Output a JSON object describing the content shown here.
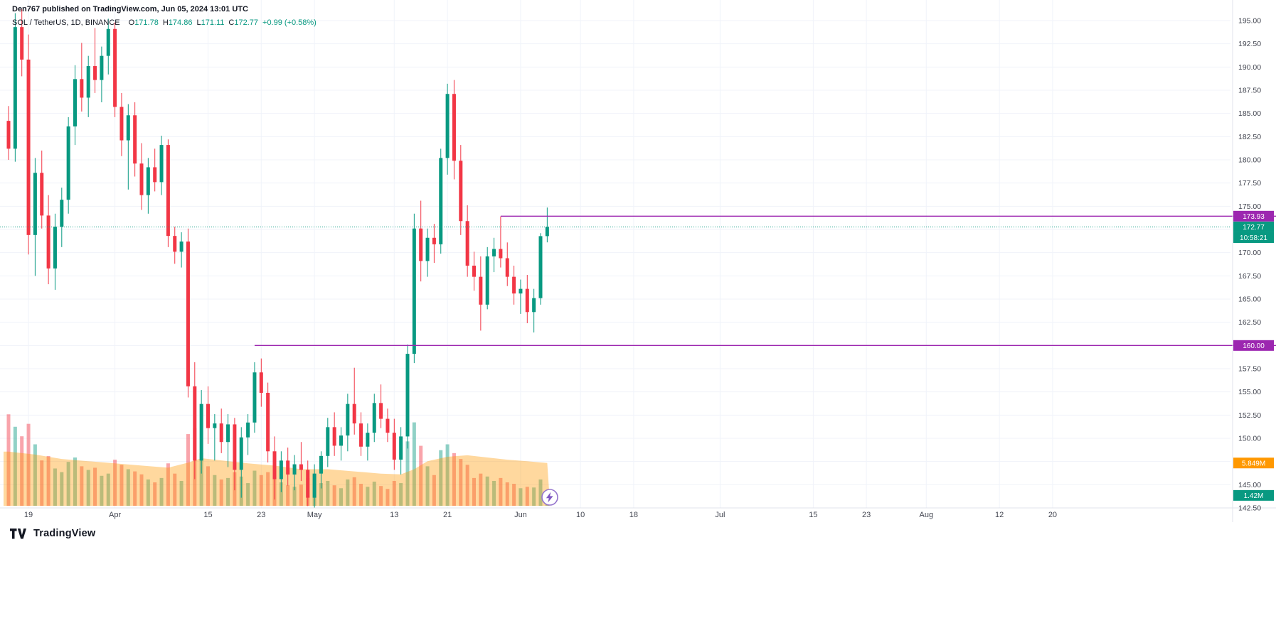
{
  "header": {
    "attribution": "Den767 published on TradingView.com, Jun 05, 2024 13:01 UTC"
  },
  "legend": {
    "title": "SOL / TetherUS, 1D, BINANCE",
    "labels": {
      "o": "O",
      "h": "H",
      "l": "L",
      "c": "C"
    },
    "open": "171.78",
    "high": "174.86",
    "low": "171.11",
    "close": "172.77",
    "change": "+0.99 (+0.58%)"
  },
  "footer": {
    "logo_text": "TradingView"
  },
  "colors": {
    "up": "#089981",
    "down": "#f23645",
    "up_vol": "rgba(8,153,129,0.45)",
    "down_vol": "rgba(242,54,69,0.45)",
    "ray": "#9c27b0",
    "close_line": "#089981",
    "vol_ma_fill": "rgba(255,152,0,0.38)",
    "grid": "#f0f3fa",
    "border": "#e0e3eb",
    "axis_text": "#434651",
    "chip_text": "#ffffff",
    "logo": "#131722"
  },
  "icons": {
    "lightning": {
      "ring": "#9575cd",
      "bolt": "#7e57c2"
    }
  },
  "price_axis": {
    "ticks": [
      195.0,
      192.5,
      190.0,
      187.5,
      185.0,
      182.5,
      180.0,
      177.5,
      175.0,
      172.5,
      170.0,
      167.5,
      165.0,
      162.5,
      160.0,
      157.5,
      155.0,
      152.5,
      150.0,
      147.5,
      145.0,
      142.5
    ],
    "chips": [
      {
        "type": "price",
        "text": "173.93",
        "value": 173.93,
        "bg": "#9c27b0"
      },
      {
        "type": "price",
        "text": "172.77",
        "value": 172.77,
        "bg": "#089981"
      },
      {
        "type": "countdown",
        "text": "10:58:21",
        "anchor_value": 172.77,
        "bg": "#089981"
      },
      {
        "type": "price",
        "text": "160.00",
        "value": 160.0,
        "bg": "#9c27b0"
      },
      {
        "type": "volume",
        "text": "5.849M",
        "value": 5.849,
        "bg": "#ff9800"
      },
      {
        "type": "volume",
        "text": "1.42M",
        "value": 1.42,
        "bg": "#089981"
      }
    ]
  },
  "time_axis": {
    "labels": [
      {
        "label": "19",
        "day": 3
      },
      {
        "label": "Apr",
        "day": 16
      },
      {
        "label": "15",
        "day": 30
      },
      {
        "label": "23",
        "day": 38
      },
      {
        "label": "May",
        "day": 46
      },
      {
        "label": "13",
        "day": 58
      },
      {
        "label": "21",
        "day": 66
      },
      {
        "label": "Jun",
        "day": 77
      },
      {
        "label": "10",
        "day": 86
      },
      {
        "label": "18",
        "day": 94
      },
      {
        "label": "Jul",
        "day": 107
      },
      {
        "label": "15",
        "day": 121
      },
      {
        "label": "23",
        "day": 129
      },
      {
        "label": "Aug",
        "day": 138
      },
      {
        "label": "12",
        "day": 149
      },
      {
        "label": "20",
        "day": 157
      }
    ]
  },
  "chart_data": {
    "type": "candlestick",
    "symbol": "SOL / TetherUS",
    "exchange": "BINANCE",
    "interval": "1D",
    "ylim": [
      142.5,
      195.0
    ],
    "y_step": 2.5,
    "grid": true,
    "columns": [
      "date",
      "open",
      "high",
      "low",
      "close",
      "volume_millions"
    ],
    "candles": [
      [
        "Mar 16",
        184.2,
        185.8,
        180.0,
        181.2,
        12.5
      ],
      [
        "Mar 17",
        181.2,
        195.8,
        179.8,
        194.3,
        10.8
      ],
      [
        "Mar 18",
        194.3,
        196.2,
        189.0,
        190.8,
        9.5
      ],
      [
        "Mar 19",
        190.8,
        193.5,
        169.8,
        171.9,
        11.2
      ],
      [
        "Mar 20",
        171.9,
        180.2,
        167.5,
        178.6,
        8.4
      ],
      [
        "Mar 21",
        178.6,
        181.0,
        172.6,
        174.0,
        6.2
      ],
      [
        "Mar 22",
        174.0,
        176.2,
        166.6,
        168.3,
        6.8
      ],
      [
        "Mar 23",
        168.3,
        174.2,
        166.0,
        172.8,
        5.1
      ],
      [
        "Mar 24",
        172.8,
        177.0,
        170.6,
        175.7,
        4.6
      ],
      [
        "Mar 25",
        175.7,
        184.6,
        174.2,
        183.6,
        6.0
      ],
      [
        "Mar 26",
        183.6,
        190.2,
        181.6,
        188.7,
        6.6
      ],
      [
        "Mar 27",
        188.7,
        192.6,
        185.2,
        186.7,
        5.4
      ],
      [
        "Mar 28",
        186.7,
        191.2,
        184.6,
        190.1,
        4.9
      ],
      [
        "Mar 29",
        190.1,
        194.2,
        187.2,
        188.6,
        5.2
      ],
      [
        "Mar 30",
        188.6,
        192.2,
        186.2,
        191.2,
        4.1
      ],
      [
        "Mar 31",
        191.2,
        195.2,
        189.2,
        194.1,
        4.4
      ],
      [
        "Apr 1",
        194.1,
        194.8,
        184.6,
        185.7,
        6.3
      ],
      [
        "Apr 2",
        185.7,
        187.2,
        180.4,
        182.1,
        5.6
      ],
      [
        "Apr 3",
        182.1,
        186.0,
        176.8,
        184.8,
        5.0
      ],
      [
        "Apr 4",
        184.8,
        186.2,
        178.2,
        179.6,
        4.7
      ],
      [
        "Apr 5",
        179.6,
        181.8,
        174.6,
        176.2,
        4.3
      ],
      [
        "Apr 6",
        176.2,
        180.2,
        174.2,
        179.2,
        3.6
      ],
      [
        "Apr 7",
        179.2,
        181.2,
        176.6,
        177.6,
        3.2
      ],
      [
        "Apr 8",
        177.6,
        182.6,
        176.2,
        181.6,
        3.8
      ],
      [
        "Apr 9",
        181.6,
        182.2,
        170.6,
        171.8,
        5.8
      ],
      [
        "Apr 10",
        171.8,
        172.8,
        168.8,
        170.1,
        4.4
      ],
      [
        "Apr 11",
        170.1,
        172.2,
        168.4,
        171.2,
        3.4
      ],
      [
        "Apr 12",
        171.2,
        172.6,
        154.4,
        155.6,
        9.8
      ],
      [
        "Apr 13",
        155.6,
        158.2,
        145.6,
        147.6,
        10.6
      ],
      [
        "Apr 14",
        147.6,
        155.2,
        146.2,
        153.7,
        7.2
      ],
      [
        "Apr 15",
        153.7,
        155.6,
        149.4,
        151.1,
        5.4
      ],
      [
        "Apr 16",
        151.1,
        152.6,
        147.6,
        151.6,
        4.2
      ],
      [
        "Apr 17",
        151.6,
        153.2,
        148.4,
        149.6,
        3.6
      ],
      [
        "Apr 18",
        149.6,
        152.6,
        146.9,
        151.5,
        3.8
      ],
      [
        "Apr 19",
        151.5,
        152.2,
        144.4,
        146.6,
        4.6
      ],
      [
        "Apr 20",
        146.6,
        151.2,
        143.6,
        150.1,
        4.0
      ],
      [
        "Apr 21",
        150.1,
        152.6,
        148.2,
        151.7,
        3.1
      ],
      [
        "Apr 22",
        151.7,
        158.2,
        150.6,
        157.1,
        4.8
      ],
      [
        "Apr 23",
        157.1,
        158.6,
        153.4,
        154.9,
        4.2
      ],
      [
        "Apr 24",
        154.9,
        156.0,
        147.4,
        148.6,
        4.6
      ],
      [
        "Apr 25",
        148.6,
        150.2,
        143.4,
        145.6,
        4.1
      ],
      [
        "Apr 26",
        145.6,
        148.6,
        144.2,
        147.6,
        3.2
      ],
      [
        "Apr 27",
        147.6,
        149.0,
        144.9,
        146.1,
        2.8
      ],
      [
        "Apr 28",
        146.1,
        148.2,
        144.4,
        147.2,
        2.6
      ],
      [
        "Apr 29",
        147.2,
        149.6,
        145.4,
        146.6,
        2.9
      ],
      [
        "Apr 30",
        146.6,
        147.6,
        142.7,
        143.6,
        3.8
      ],
      [
        "May 1",
        143.6,
        147.2,
        142.5,
        146.2,
        4.2
      ],
      [
        "May 2",
        146.2,
        148.6,
        144.6,
        148.1,
        3.1
      ],
      [
        "May 3",
        148.1,
        152.2,
        146.9,
        151.2,
        3.4
      ],
      [
        "May 4",
        151.2,
        152.8,
        148.1,
        149.2,
        2.8
      ],
      [
        "May 5",
        149.2,
        151.2,
        147.6,
        150.3,
        2.4
      ],
      [
        "May 6",
        150.3,
        154.8,
        148.6,
        153.7,
        3.6
      ],
      [
        "May 7",
        153.7,
        157.6,
        150.4,
        151.6,
        3.9
      ],
      [
        "May 8",
        151.6,
        152.8,
        148.1,
        149.1,
        3.0
      ],
      [
        "May 9",
        149.1,
        151.6,
        147.6,
        150.6,
        2.6
      ],
      [
        "May 10",
        150.6,
        154.8,
        149.6,
        153.8,
        3.3
      ],
      [
        "May 11",
        153.8,
        155.8,
        151.1,
        152.1,
        2.7
      ],
      [
        "May 12",
        152.1,
        153.2,
        149.6,
        150.6,
        2.3
      ],
      [
        "May 13",
        150.6,
        152.1,
        146.6,
        147.7,
        3.4
      ],
      [
        "May 14",
        147.7,
        151.2,
        146.1,
        150.2,
        3.1
      ],
      [
        "May 15",
        150.2,
        160.1,
        148.9,
        159.1,
        8.8
      ],
      [
        "May 16",
        159.1,
        174.2,
        158.1,
        172.6,
        11.4
      ],
      [
        "May 17",
        172.6,
        175.6,
        166.9,
        169.1,
        8.2
      ],
      [
        "May 18",
        169.1,
        172.6,
        167.4,
        171.6,
        5.4
      ],
      [
        "May 19",
        171.6,
        173.1,
        168.9,
        170.9,
        4.2
      ],
      [
        "May 20",
        170.9,
        181.2,
        169.9,
        180.2,
        7.6
      ],
      [
        "May 21",
        180.2,
        188.2,
        178.4,
        187.1,
        8.4
      ],
      [
        "May 22",
        187.1,
        188.6,
        177.9,
        179.9,
        7.2
      ],
      [
        "May 23",
        179.9,
        181.6,
        171.9,
        173.4,
        6.4
      ],
      [
        "May 24",
        173.4,
        175.1,
        167.4,
        168.6,
        5.6
      ],
      [
        "May 25",
        168.6,
        170.1,
        165.9,
        167.4,
        3.8
      ],
      [
        "May 26",
        167.4,
        169.6,
        161.6,
        164.4,
        4.4
      ],
      [
        "May 27",
        164.4,
        170.6,
        163.9,
        169.6,
        4.0
      ],
      [
        "May 28",
        169.6,
        171.6,
        167.9,
        170.4,
        3.4
      ],
      [
        "May 29",
        170.4,
        173.9,
        168.4,
        169.4,
        3.8
      ],
      [
        "May 30",
        169.4,
        171.1,
        166.4,
        167.4,
        3.2
      ],
      [
        "May 31",
        167.4,
        168.6,
        164.4,
        165.6,
        3.0
      ],
      [
        "Jun 1",
        165.6,
        167.1,
        163.4,
        166.1,
        2.4
      ],
      [
        "Jun 2",
        166.1,
        167.6,
        162.4,
        163.6,
        2.6
      ],
      [
        "Jun 3",
        163.6,
        166.1,
        161.4,
        165.1,
        2.5
      ],
      [
        "Jun 4",
        165.1,
        172.1,
        164.4,
        171.78,
        3.6
      ],
      [
        "Jun 5",
        171.78,
        174.86,
        171.11,
        172.77,
        1.42
      ]
    ],
    "close_price_line": {
      "value": 172.77,
      "style": "dotted"
    },
    "horizontal_rays": [
      {
        "price": 173.93,
        "start_date": "May 29",
        "start_day": 74
      },
      {
        "price": 160.0,
        "start_date": "Apr 22",
        "start_day": 37
      }
    ],
    "volume_ma": {
      "end_label": "5.849M",
      "points": [
        [
          0,
          7.4
        ],
        [
          4,
          7.0
        ],
        [
          8,
          6.4
        ],
        [
          12,
          6.1
        ],
        [
          16,
          5.8
        ],
        [
          20,
          5.5
        ],
        [
          24,
          5.2
        ],
        [
          27,
          5.9
        ],
        [
          29,
          6.5
        ],
        [
          32,
          6.2
        ],
        [
          36,
          5.8
        ],
        [
          40,
          5.5
        ],
        [
          44,
          5.0
        ],
        [
          48,
          5.0
        ],
        [
          52,
          4.7
        ],
        [
          56,
          4.4
        ],
        [
          59,
          4.3
        ],
        [
          61,
          5.0
        ],
        [
          63,
          6.1
        ],
        [
          66,
          6.7
        ],
        [
          69,
          6.9
        ],
        [
          72,
          6.6
        ],
        [
          75,
          6.3
        ],
        [
          78,
          6.1
        ],
        [
          81,
          5.849
        ]
      ]
    },
    "current_volume_label": "1.42M"
  }
}
